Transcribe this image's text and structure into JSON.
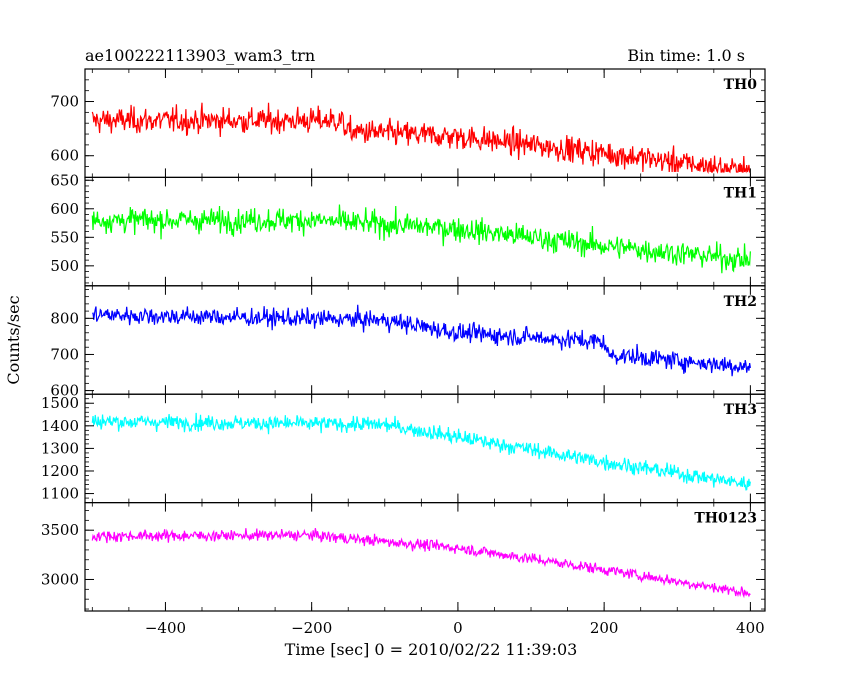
{
  "header": {
    "title": "ae100222113903_wam3_trn",
    "bin_time": "Bin time: 1.0 s"
  },
  "chart_data": {
    "type": "line",
    "xlabel": "Time [sec] 0 = 2010/02/22 11:39:03",
    "ylabel": "Counts/sec",
    "xlim": [
      -510,
      420
    ],
    "xticks": [
      -400,
      -200,
      0,
      200,
      400
    ],
    "bin_time_s": 1.0,
    "grid": false,
    "panels": [
      {
        "name": "TH0",
        "color": "#ff0000",
        "ylim": [
          560,
          760
        ],
        "yticks": [
          600,
          700
        ],
        "start": [
          -500,
          660
        ],
        "trend": [
          [
            -500,
            665
          ],
          [
            -160,
            665
          ],
          [
            -150,
            645
          ],
          [
            0,
            635
          ],
          [
            200,
            605
          ],
          [
            400,
            570
          ]
        ],
        "noise_sigma": 28,
        "range": [
          570,
          755
        ]
      },
      {
        "name": "TH1",
        "color": "#00ff00",
        "ylim": [
          465,
          655
        ],
        "yticks": [
          500,
          550,
          600,
          650
        ],
        "start": [
          -500,
          580
        ],
        "trend": [
          [
            -500,
            580
          ],
          [
            -200,
            580
          ],
          [
            0,
            565
          ],
          [
            200,
            535
          ],
          [
            400,
            510
          ]
        ],
        "noise_sigma": 25,
        "range": [
          475,
          650
        ]
      },
      {
        "name": "TH2",
        "color": "#0000ff",
        "ylim": [
          590,
          890
        ],
        "yticks": [
          600,
          700,
          800
        ],
        "start": [
          -500,
          810
        ],
        "trend": [
          [
            -500,
            810
          ],
          [
            -100,
            795
          ],
          [
            0,
            760
          ],
          [
            200,
            735
          ],
          [
            205,
            700
          ],
          [
            400,
            665
          ]
        ],
        "noise_sigma": 30,
        "range": [
          620,
          885
        ]
      },
      {
        "name": "TH3",
        "color": "#00ffff",
        "ylim": [
          1060,
          1540
        ],
        "yticks": [
          1100,
          1200,
          1300,
          1400,
          1500
        ],
        "start": [
          -500,
          1420
        ],
        "trend": [
          [
            -500,
            1420
          ],
          [
            -100,
            1405
          ],
          [
            0,
            1350
          ],
          [
            200,
            1240
          ],
          [
            400,
            1140
          ]
        ],
        "noise_sigma": 40,
        "range": [
          1080,
          1540
        ]
      },
      {
        "name": "TH0123",
        "color": "#ff00ff",
        "ylim": [
          2680,
          3780
        ],
        "yticks": [
          3000,
          3500
        ],
        "start": [
          -500,
          3420
        ],
        "trend": [
          [
            -500,
            3440
          ],
          [
            -200,
            3450
          ],
          [
            0,
            3320
          ],
          [
            200,
            3100
          ],
          [
            400,
            2860
          ]
        ],
        "noise_sigma": 65,
        "range": [
          2720,
          3770
        ]
      }
    ]
  }
}
